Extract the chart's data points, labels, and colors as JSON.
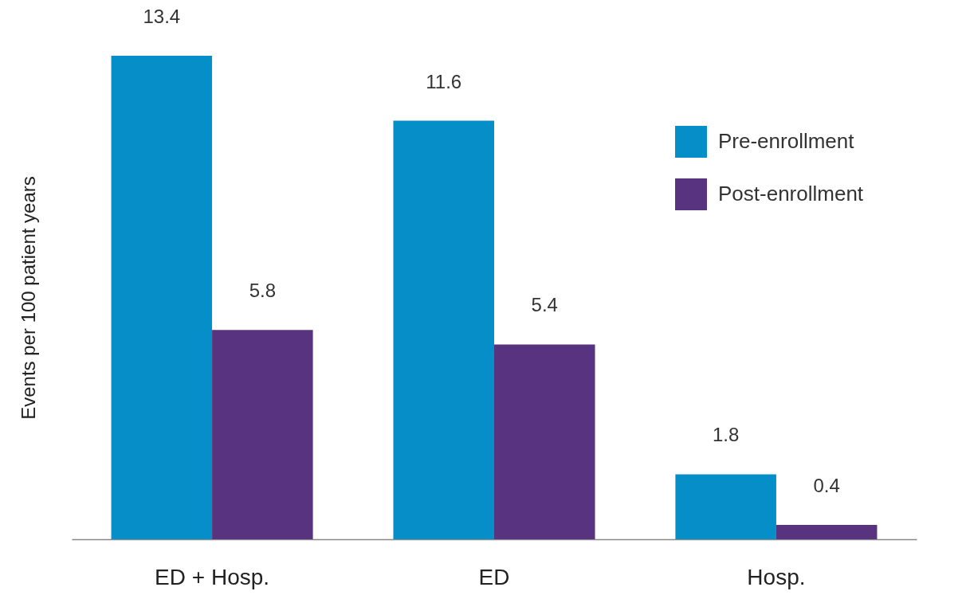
{
  "chart_data": {
    "type": "bar",
    "ylabel": "Events per 100 patient years",
    "categories": [
      "ED + Hosp.",
      "ED",
      "Hosp."
    ],
    "series": [
      {
        "name": "Pre-enrollment",
        "color": "#068ec9",
        "values": [
          13.4,
          11.6,
          1.8
        ]
      },
      {
        "name": "Post-enrollment",
        "color": "#58337f",
        "values": [
          5.8,
          5.4,
          0.4
        ]
      }
    ],
    "tick_labels": "x",
    "data_labels": true,
    "legend": "top right",
    "grid": false
  }
}
